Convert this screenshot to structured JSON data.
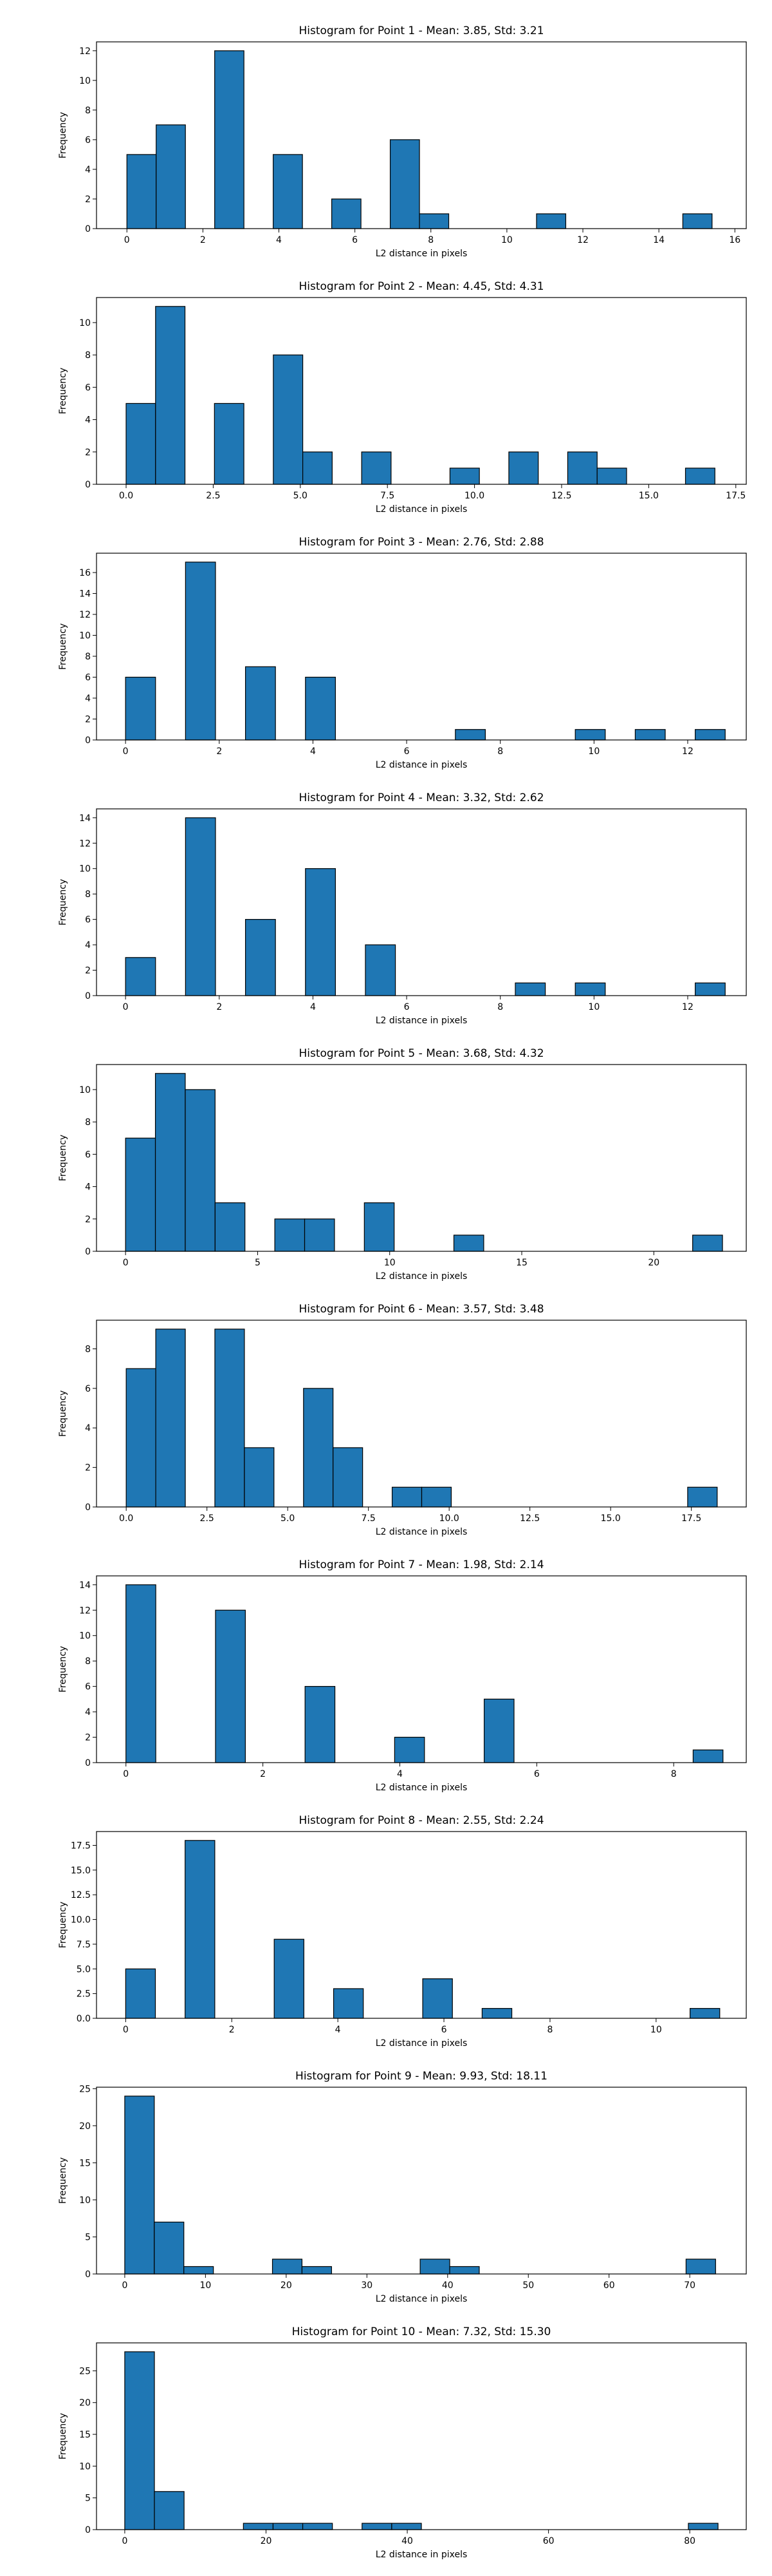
{
  "chart_data": [
    {
      "type": "bar",
      "title": "Histogram for Point 1 - Mean: 3.85, Std: 3.21",
      "xlabel": "L2 distance in pixels",
      "ylabel": "Frequency",
      "xlim": [
        -0.8,
        16.3
      ],
      "ylim": [
        0,
        12.6
      ],
      "xticks": [
        0,
        2,
        4,
        6,
        8,
        10,
        12,
        14,
        16
      ],
      "yticks": [
        0,
        2,
        4,
        6,
        8,
        10,
        12
      ],
      "bin_width": 0.77,
      "bins": [
        [
          0.0,
          5
        ],
        [
          0.77,
          7
        ],
        [
          2.31,
          12
        ],
        [
          3.85,
          5
        ],
        [
          5.39,
          2
        ],
        [
          6.93,
          6
        ],
        [
          7.7,
          1
        ],
        [
          10.78,
          1
        ],
        [
          14.63,
          1
        ]
      ]
    },
    {
      "type": "bar",
      "title": "Histogram for Point 2 - Mean: 4.45, Std: 4.31",
      "xlabel": "L2 distance in pixels",
      "ylabel": "Frequency",
      "xlim": [
        -0.85,
        17.8
      ],
      "ylim": [
        0,
        11.55
      ],
      "xticks": [
        0.0,
        2.5,
        5.0,
        7.5,
        10.0,
        12.5,
        15.0,
        17.5
      ],
      "yticks": [
        0,
        2,
        4,
        6,
        8,
        10
      ],
      "bin_width": 0.845,
      "bins": [
        [
          0.0,
          5
        ],
        [
          0.845,
          11
        ],
        [
          2.535,
          5
        ],
        [
          4.225,
          8
        ],
        [
          5.07,
          2
        ],
        [
          6.76,
          2
        ],
        [
          9.295,
          1
        ],
        [
          10.985,
          2
        ],
        [
          12.675,
          2
        ],
        [
          13.52,
          1
        ],
        [
          16.055,
          1
        ]
      ]
    },
    {
      "type": "bar",
      "title": "Histogram for Point 3 - Mean: 2.76, Std: 2.88",
      "xlabel": "L2 distance in pixels",
      "ylabel": "Frequency",
      "xlim": [
        -0.62,
        13.25
      ],
      "ylim": [
        0,
        17.85
      ],
      "xticks": [
        0,
        2,
        4,
        6,
        8,
        10,
        12
      ],
      "yticks": [
        0,
        2,
        4,
        6,
        8,
        10,
        12,
        14,
        16
      ],
      "bin_width": 0.64,
      "bins": [
        [
          0.0,
          6
        ],
        [
          1.28,
          17
        ],
        [
          2.56,
          7
        ],
        [
          3.84,
          6
        ],
        [
          7.04,
          1
        ],
        [
          9.6,
          1
        ],
        [
          10.88,
          1
        ],
        [
          12.16,
          1
        ]
      ]
    },
    {
      "type": "bar",
      "title": "Histogram for Point 4 - Mean: 3.32, Std: 2.62",
      "xlabel": "L2 distance in pixels",
      "ylabel": "Frequency",
      "xlim": [
        -0.62,
        13.25
      ],
      "ylim": [
        0,
        14.7
      ],
      "xticks": [
        0,
        2,
        4,
        6,
        8,
        10,
        12
      ],
      "yticks": [
        0,
        2,
        4,
        6,
        8,
        10,
        12,
        14
      ],
      "bin_width": 0.64,
      "bins": [
        [
          0.0,
          3
        ],
        [
          1.28,
          14
        ],
        [
          2.56,
          6
        ],
        [
          3.84,
          10
        ],
        [
          5.12,
          4
        ],
        [
          8.32,
          1
        ],
        [
          9.6,
          1
        ],
        [
          12.16,
          1
        ]
      ]
    },
    {
      "type": "bar",
      "title": "Histogram for Point 5 - Mean: 3.68, Std: 4.32",
      "xlabel": "L2 distance in pixels",
      "ylabel": "Frequency",
      "xlim": [
        -1.1,
        23.5
      ],
      "ylim": [
        0,
        11.55
      ],
      "xticks": [
        0,
        5,
        10,
        15,
        20
      ],
      "yticks": [
        0,
        2,
        4,
        6,
        8,
        10
      ],
      "bin_width": 1.13,
      "bins": [
        [
          0.0,
          7
        ],
        [
          1.13,
          11
        ],
        [
          2.26,
          10
        ],
        [
          3.39,
          3
        ],
        [
          5.65,
          2
        ],
        [
          6.78,
          2
        ],
        [
          9.04,
          3
        ],
        [
          12.43,
          1
        ],
        [
          21.47,
          1
        ]
      ]
    },
    {
      "type": "bar",
      "title": "Histogram for Point 6 - Mean: 3.57, Std: 3.48",
      "xlabel": "L2 distance in pixels",
      "ylabel": "Frequency",
      "xlim": [
        -0.92,
        19.2
      ],
      "ylim": [
        0,
        9.45
      ],
      "xticks": [
        0.0,
        2.5,
        5.0,
        7.5,
        10.0,
        12.5,
        15.0,
        17.5
      ],
      "yticks": [
        0,
        2,
        4,
        6,
        8
      ],
      "bin_width": 0.915,
      "bins": [
        [
          0.0,
          7
        ],
        [
          0.915,
          9
        ],
        [
          2.745,
          9
        ],
        [
          3.66,
          3
        ],
        [
          5.49,
          6
        ],
        [
          6.405,
          3
        ],
        [
          8.235,
          1
        ],
        [
          9.15,
          1
        ],
        [
          17.385,
          1
        ]
      ]
    },
    {
      "type": "bar",
      "title": "Histogram for Point 7 - Mean: 1.98, Std: 2.14",
      "xlabel": "L2 distance in pixels",
      "ylabel": "Frequency",
      "xlim": [
        -0.43,
        9.06
      ],
      "ylim": [
        0,
        14.7
      ],
      "xticks": [
        0,
        2,
        4,
        6,
        8
      ],
      "yticks": [
        0,
        2,
        4,
        6,
        8,
        10,
        12,
        14
      ],
      "bin_width": 0.436,
      "bins": [
        [
          0.0,
          14
        ],
        [
          1.308,
          12
        ],
        [
          2.616,
          6
        ],
        [
          3.924,
          2
        ],
        [
          5.232,
          5
        ],
        [
          8.284,
          1
        ]
      ]
    },
    {
      "type": "bar",
      "title": "Histogram for Point 8 - Mean: 2.55, Std: 2.24",
      "xlabel": "L2 distance in pixels",
      "ylabel": "Frequency",
      "xlim": [
        -0.55,
        11.7
      ],
      "ylim": [
        0,
        18.9
      ],
      "xticks": [
        0,
        2,
        4,
        6,
        8,
        10
      ],
      "yticks": [
        0.0,
        2.5,
        5.0,
        7.5,
        10.0,
        12.5,
        15.0,
        17.5
      ],
      "bin_width": 0.56,
      "bins": [
        [
          0.0,
          5
        ],
        [
          1.12,
          18
        ],
        [
          2.8,
          8
        ],
        [
          3.92,
          3
        ],
        [
          5.6,
          4
        ],
        [
          6.72,
          1
        ],
        [
          10.64,
          1
        ]
      ]
    },
    {
      "type": "bar",
      "title": "Histogram for Point 9 - Mean: 9.93, Std: 18.11",
      "xlabel": "L2 distance in pixels",
      "ylabel": "Frequency",
      "xlim": [
        -3.5,
        77.0
      ],
      "ylim": [
        0,
        25.2
      ],
      "xticks": [
        0,
        10,
        20,
        30,
        40,
        50,
        60,
        70
      ],
      "yticks": [
        0,
        5,
        10,
        15,
        20,
        25
      ],
      "bin_width": 3.66,
      "bins": [
        [
          0.0,
          24
        ],
        [
          3.66,
          7
        ],
        [
          7.32,
          1
        ],
        [
          18.3,
          2
        ],
        [
          21.96,
          1
        ],
        [
          36.6,
          2
        ],
        [
          40.26,
          1
        ],
        [
          69.54,
          2
        ]
      ]
    },
    {
      "type": "bar",
      "title": "Histogram for Point 10 - Mean: 7.32, Std: 15.30",
      "xlabel": "L2 distance in pixels",
      "ylabel": "Frequency",
      "xlim": [
        -4.0,
        88.0
      ],
      "ylim": [
        0,
        29.4
      ],
      "xticks": [
        0,
        20,
        40,
        60,
        80
      ],
      "yticks": [
        0,
        5,
        10,
        15,
        20,
        25
      ],
      "bin_width": 4.2,
      "bins": [
        [
          0.0,
          28
        ],
        [
          4.2,
          6
        ],
        [
          16.8,
          1
        ],
        [
          21.0,
          1
        ],
        [
          25.2,
          1
        ],
        [
          33.6,
          1
        ],
        [
          37.8,
          1
        ],
        [
          79.8,
          1
        ]
      ]
    }
  ]
}
